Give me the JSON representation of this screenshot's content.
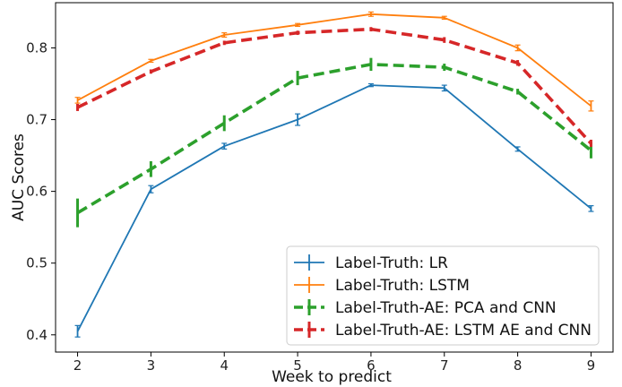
{
  "chart_data": {
    "type": "line",
    "title": "",
    "xlabel": "Week to predict",
    "ylabel": "AUC Scores",
    "x": [
      2,
      3,
      4,
      5,
      6,
      7,
      8,
      9
    ],
    "xlim": [
      1.7,
      9.3
    ],
    "ylim": [
      0.376,
      0.863
    ],
    "xticks": [
      "2",
      "3",
      "4",
      "5",
      "6",
      "7",
      "8",
      "9"
    ],
    "yticks": [
      "0.4",
      "0.5",
      "0.6",
      "0.7",
      "0.8"
    ],
    "grid": false,
    "legend_position": "bottom-right",
    "series": [
      {
        "name": "Label-Truth: LR",
        "color": "#1f77b4",
        "style": "solid",
        "values": [
          0.405,
          0.603,
          0.663,
          0.7,
          0.748,
          0.744,
          0.659,
          0.576
        ],
        "errors": [
          0.008,
          0.005,
          0.004,
          0.008,
          0.002,
          0.004,
          0.003,
          0.004
        ]
      },
      {
        "name": "Label-Truth: LSTM",
        "color": "#ff7f0e",
        "style": "solid",
        "values": [
          0.727,
          0.782,
          0.818,
          0.832,
          0.847,
          0.842,
          0.8,
          0.719
        ],
        "errors": [
          0.004,
          0.002,
          0.003,
          0.002,
          0.003,
          0.002,
          0.004,
          0.007
        ]
      },
      {
        "name": "Label-Truth-AE: PCA and CNN",
        "color": "#2ca02c",
        "style": "dashed",
        "values": [
          0.57,
          0.631,
          0.695,
          0.758,
          0.777,
          0.773,
          0.739,
          0.657
        ],
        "errors": [
          0.02,
          0.011,
          0.011,
          0.01,
          0.009,
          0.005,
          0.004,
          0.011
        ]
      },
      {
        "name": "Label-Truth-AE: LSTM AE and CNN",
        "color": "#d62728",
        "style": "dashed",
        "values": [
          0.717,
          0.767,
          0.807,
          0.821,
          0.826,
          0.811,
          0.779,
          0.667
        ],
        "errors": [
          0.005,
          0.003,
          0.003,
          0.003,
          0.003,
          0.004,
          0.004,
          0.005
        ]
      }
    ]
  }
}
